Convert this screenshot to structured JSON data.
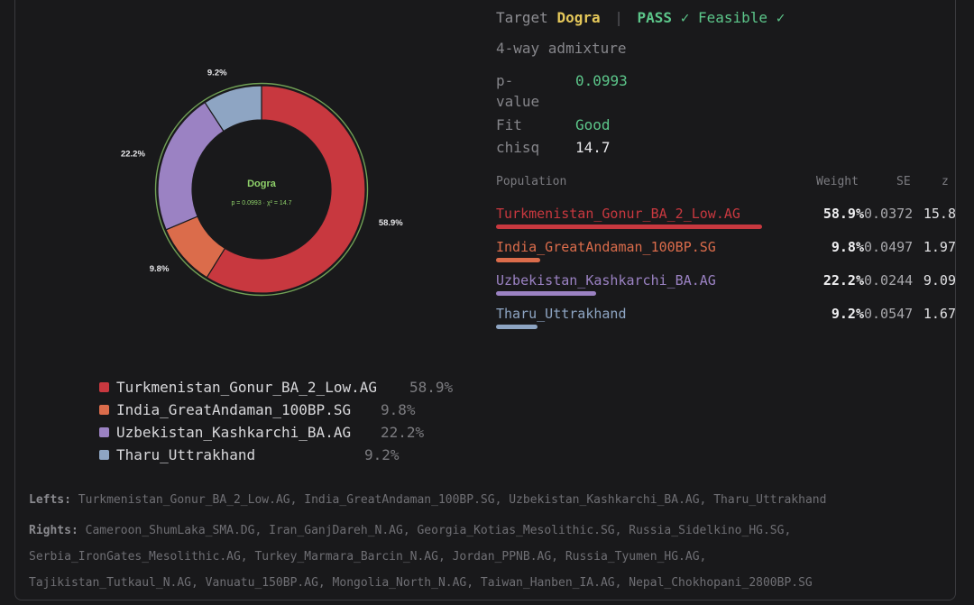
{
  "header": {
    "target_label": "Target",
    "target_name": "Dogra",
    "pass_label": "PASS",
    "feasible_label": "Feasible",
    "check_icon": "check-icon",
    "model_desc": "4-way admixture"
  },
  "stats": {
    "pvalue_label_1": "p-",
    "pvalue_label_2": "value",
    "pvalue": "0.0993",
    "fit_label": "Fit",
    "fit": "Good",
    "chisq_label": "chisq",
    "chisq": "14.7"
  },
  "table": {
    "headers": [
      "Population",
      "Weight",
      "SE",
      "z"
    ],
    "rows": [
      {
        "name": "Turkmenistan_Gonur_BA_2_Low.AG",
        "weight": "58.9%",
        "se": "0.0372",
        "z": "15.8"
      },
      {
        "name": "India_GreatAndaman_100BP.SG",
        "weight": "9.8%",
        "se": "0.0497",
        "z": "1.97"
      },
      {
        "name": "Uzbekistan_Kashkarchi_BA.AG",
        "weight": "22.2%",
        "se": "0.0244",
        "z": "9.09"
      },
      {
        "name": "Tharu_Uttrakhand",
        "weight": "9.2%",
        "se": "0.0547",
        "z": "1.67"
      }
    ]
  },
  "chart_data": {
    "type": "pie",
    "center_title": "Dogra",
    "center_subtitle": "p = 0.0993 · χ² = 14.7",
    "categories": [
      "Turkmenistan_Gonur_BA_2_Low.AG",
      "India_GreatAndaman_100BP.SG",
      "Uzbekistan_Kashkarchi_BA.AG",
      "Tharu_Uttrakhand"
    ],
    "values": [
      58.9,
      9.8,
      22.2,
      9.2
    ],
    "labels": [
      "58.9%",
      "9.8%",
      "22.2%",
      "9.2%"
    ],
    "colors": [
      "#c8383f",
      "#db6c4b",
      "#9b82c3",
      "#8ea5c3"
    ],
    "legend_placement": "bottom"
  },
  "footer": {
    "lefts_label": "Lefts:",
    "lefts": "Turkmenistan_Gonur_BA_2_Low.AG, India_GreatAndaman_100BP.SG, Uzbekistan_Kashkarchi_BA.AG, Tharu_Uttrakhand",
    "rights_label": "Rights:",
    "rights_line1": "Cameroon_ShumLaka_SMA.DG, Iran_GanjDareh_N.AG, Georgia_Kotias_Mesolithic.SG, Russia_Sidelkino_HG.SG,",
    "rights_line2": "Serbia_IronGates_Mesolithic.AG, Turkey_Marmara_Barcin_N.AG, Jordan_PPNB.AG, Russia_Tyumen_HG.AG,",
    "rights_line3": "Tajikistan_Tutkaul_N.AG, Vanuatu_150BP.AG, Mongolia_North_N.AG, Taiwan_Hanben_IA.AG, Nepal_Chokhopani_2800BP.SG"
  }
}
